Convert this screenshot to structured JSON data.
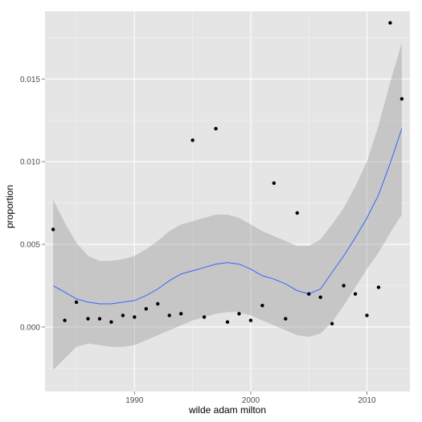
{
  "chart_data": {
    "type": "scatter",
    "title": "",
    "xlabel": "wilde adam milton",
    "ylabel": "proportion",
    "xlim": [
      1982.3,
      2013.7
    ],
    "ylim": [
      -0.0039,
      0.0191
    ],
    "x_ticks": [
      1990,
      2000,
      2010
    ],
    "y_ticks": [
      0.0,
      0.005,
      0.01,
      0.015
    ],
    "x_tick_labels": [
      "1990",
      "2000",
      "2010"
    ],
    "y_tick_labels": [
      "0.000",
      "0.005",
      "0.010",
      "0.015"
    ],
    "grid": true,
    "legend": "none",
    "colors": {
      "panel": "#e5e5e5",
      "grid_major": "#ffffff",
      "grid_minor": "#f2f2f2",
      "points": "#000000",
      "smooth_line": "#3366ff",
      "ribbon": "#999999"
    },
    "points": [
      {
        "x": 1983,
        "y": 0.0059
      },
      {
        "x": 1984,
        "y": 0.0004
      },
      {
        "x": 1985,
        "y": 0.0015
      },
      {
        "x": 1986,
        "y": 0.0005
      },
      {
        "x": 1987,
        "y": 0.0005
      },
      {
        "x": 1988,
        "y": 0.0003
      },
      {
        "x": 1989,
        "y": 0.0007
      },
      {
        "x": 1990,
        "y": 0.0006
      },
      {
        "x": 1991,
        "y": 0.0011
      },
      {
        "x": 1992,
        "y": 0.0014
      },
      {
        "x": 1993,
        "y": 0.0007
      },
      {
        "x": 1994,
        "y": 0.0008
      },
      {
        "x": 1995,
        "y": 0.0113
      },
      {
        "x": 1996,
        "y": 0.0006
      },
      {
        "x": 1997,
        "y": 0.012
      },
      {
        "x": 1998,
        "y": 0.0003
      },
      {
        "x": 1999,
        "y": 0.0008
      },
      {
        "x": 2000,
        "y": 0.0004
      },
      {
        "x": 2001,
        "y": 0.0013
      },
      {
        "x": 2002,
        "y": 0.0087
      },
      {
        "x": 2003,
        "y": 0.0005
      },
      {
        "x": 2004,
        "y": 0.0069
      },
      {
        "x": 2005,
        "y": 0.002
      },
      {
        "x": 2006,
        "y": 0.0018
      },
      {
        "x": 2007,
        "y": 0.0002
      },
      {
        "x": 2008,
        "y": 0.0025
      },
      {
        "x": 2009,
        "y": 0.002
      },
      {
        "x": 2010,
        "y": 0.0007
      },
      {
        "x": 2011,
        "y": 0.0024
      },
      {
        "x": 2012,
        "y": 0.0184
      },
      {
        "x": 2013,
        "y": 0.0138
      }
    ],
    "smooth": [
      {
        "x": 1983,
        "y": 0.0025,
        "lo": -0.0026,
        "hi": 0.0077
      },
      {
        "x": 1984,
        "y": 0.0021,
        "lo": -0.0019,
        "hi": 0.0063
      },
      {
        "x": 1985,
        "y": 0.0017,
        "lo": -0.0012,
        "hi": 0.0051
      },
      {
        "x": 1986,
        "y": 0.0015,
        "lo": -0.001,
        "hi": 0.0043
      },
      {
        "x": 1987,
        "y": 0.0014,
        "lo": -0.0011,
        "hi": 0.004
      },
      {
        "x": 1988,
        "y": 0.0014,
        "lo": -0.0012,
        "hi": 0.004
      },
      {
        "x": 1989,
        "y": 0.0015,
        "lo": -0.0012,
        "hi": 0.0041
      },
      {
        "x": 1990,
        "y": 0.0016,
        "lo": -0.0011,
        "hi": 0.0043
      },
      {
        "x": 1991,
        "y": 0.0019,
        "lo": -0.0008,
        "hi": 0.0047
      },
      {
        "x": 1992,
        "y": 0.0023,
        "lo": -0.0005,
        "hi": 0.0052
      },
      {
        "x": 1993,
        "y": 0.0028,
        "lo": -0.0002,
        "hi": 0.0058
      },
      {
        "x": 1994,
        "y": 0.0032,
        "lo": 0.0001,
        "hi": 0.0062
      },
      {
        "x": 1995,
        "y": 0.0034,
        "lo": 0.0004,
        "hi": 0.0064
      },
      {
        "x": 1996,
        "y": 0.0036,
        "lo": 0.0006,
        "hi": 0.0066
      },
      {
        "x": 1997,
        "y": 0.0038,
        "lo": 0.0008,
        "hi": 0.0068
      },
      {
        "x": 1998,
        "y": 0.0039,
        "lo": 0.0009,
        "hi": 0.0068
      },
      {
        "x": 1999,
        "y": 0.0038,
        "lo": 0.0009,
        "hi": 0.0066
      },
      {
        "x": 2000,
        "y": 0.0035,
        "lo": 0.0007,
        "hi": 0.0062
      },
      {
        "x": 2001,
        "y": 0.0031,
        "lo": 0.0004,
        "hi": 0.0058
      },
      {
        "x": 2002,
        "y": 0.0029,
        "lo": 0.0001,
        "hi": 0.0055
      },
      {
        "x": 2003,
        "y": 0.0026,
        "lo": -0.0002,
        "hi": 0.0052
      },
      {
        "x": 2004,
        "y": 0.0022,
        "lo": -0.0005,
        "hi": 0.0049
      },
      {
        "x": 2005,
        "y": 0.002,
        "lo": -0.0006,
        "hi": 0.0049
      },
      {
        "x": 2006,
        "y": 0.0023,
        "lo": -0.0004,
        "hi": 0.0053
      },
      {
        "x": 2007,
        "y": 0.0033,
        "lo": 0.0003,
        "hi": 0.0062
      },
      {
        "x": 2008,
        "y": 0.0043,
        "lo": 0.0013,
        "hi": 0.0072
      },
      {
        "x": 2009,
        "y": 0.0054,
        "lo": 0.0024,
        "hi": 0.0085
      },
      {
        "x": 2010,
        "y": 0.0066,
        "lo": 0.0035,
        "hi": 0.01
      },
      {
        "x": 2011,
        "y": 0.008,
        "lo": 0.0045,
        "hi": 0.0122
      },
      {
        "x": 2012,
        "y": 0.0099,
        "lo": 0.0057,
        "hi": 0.0148
      },
      {
        "x": 2013,
        "y": 0.012,
        "lo": 0.0068,
        "hi": 0.0172
      }
    ]
  }
}
